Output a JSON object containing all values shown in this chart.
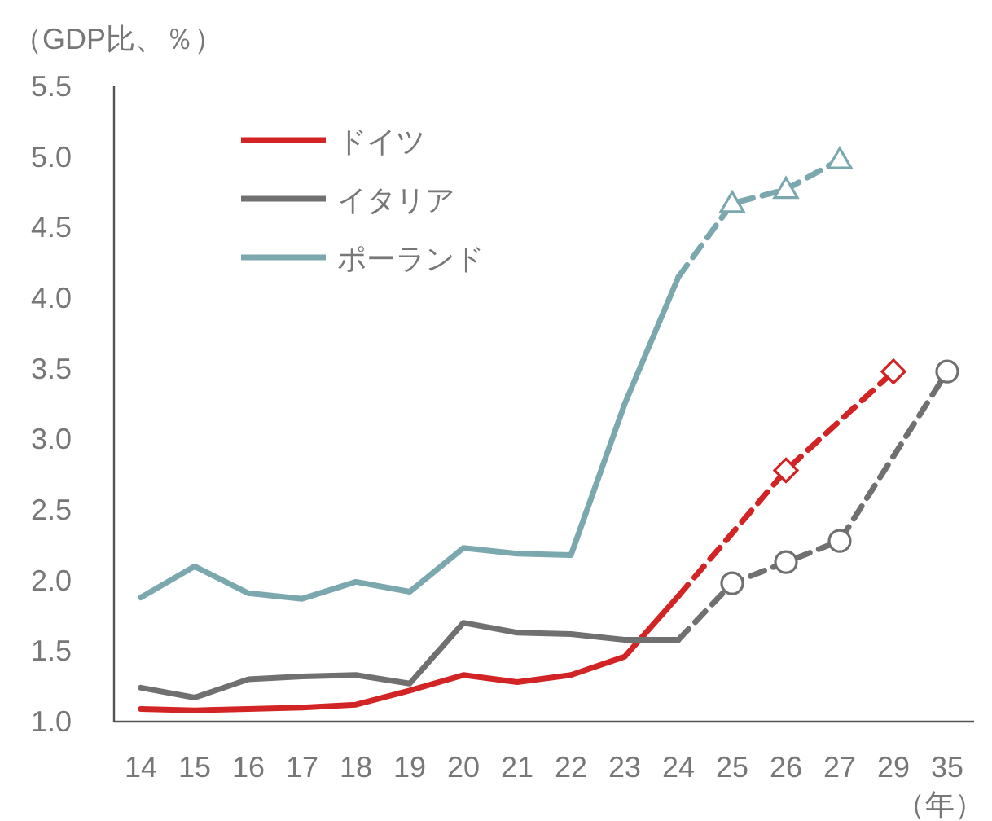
{
  "chart_data": {
    "type": "line",
    "ylabel": "（GDP比、％）",
    "xlabel": "（年）",
    "categories": [
      "14",
      "15",
      "16",
      "17",
      "18",
      "19",
      "20",
      "21",
      "22",
      "23",
      "24",
      "25",
      "26",
      "27",
      "29",
      "35"
    ],
    "ylim": [
      1.0,
      5.5
    ],
    "yticks": [
      {
        "value": 1.0,
        "label": "1.0"
      },
      {
        "value": 1.5,
        "label": "1.5"
      },
      {
        "value": 2.0,
        "label": "2.0"
      },
      {
        "value": 2.5,
        "label": "2.5"
      },
      {
        "value": 3.0,
        "label": "3.0"
      },
      {
        "value": 3.5,
        "label": "3.5"
      },
      {
        "value": 4.0,
        "label": "4.0"
      },
      {
        "value": 4.5,
        "label": "4.5"
      },
      {
        "value": 5.0,
        "label": "5.0"
      },
      {
        "value": 5.5,
        "label": "5.5"
      }
    ],
    "grid": false,
    "legend": "top left",
    "series": [
      {
        "name": "ドイツ",
        "color": "#d22424",
        "line_style": "solid",
        "values": [
          1.09,
          1.08,
          1.09,
          1.1,
          1.12,
          1.22,
          1.33,
          1.28,
          1.33,
          1.46,
          1.89,
          null,
          null,
          null,
          null,
          null
        ]
      },
      {
        "name": "イタリア",
        "color": "#707070",
        "line_style": "solid",
        "values": [
          1.24,
          1.17,
          1.3,
          1.32,
          1.33,
          1.27,
          1.7,
          1.63,
          1.62,
          1.58,
          1.58,
          null,
          null,
          null,
          null,
          null
        ]
      },
      {
        "name": "ポーランド",
        "color": "#7aa8ae",
        "line_style": "solid",
        "values": [
          1.88,
          2.1,
          1.91,
          1.87,
          1.99,
          1.92,
          2.23,
          2.19,
          2.18,
          3.25,
          4.15,
          null,
          null,
          null,
          null,
          null
        ]
      },
      {
        "color": "#d22424",
        "line_style": "dashed",
        "marker": "diamond",
        "values": [
          null,
          null,
          null,
          null,
          null,
          null,
          null,
          null,
          null,
          null,
          1.89,
          null,
          2.78,
          null,
          3.48,
          null
        ]
      },
      {
        "color": "#707070",
        "line_style": "dashed",
        "marker": "circle",
        "values": [
          null,
          null,
          null,
          null,
          null,
          null,
          null,
          null,
          null,
          null,
          1.58,
          1.98,
          2.13,
          2.28,
          null,
          3.48
        ]
      },
      {
        "color": "#7aa8ae",
        "line_style": "dashed",
        "marker": "triangle",
        "values": [
          null,
          null,
          null,
          null,
          null,
          null,
          null,
          null,
          null,
          null,
          4.15,
          4.67,
          4.77,
          4.98,
          null,
          null
        ]
      }
    ]
  }
}
